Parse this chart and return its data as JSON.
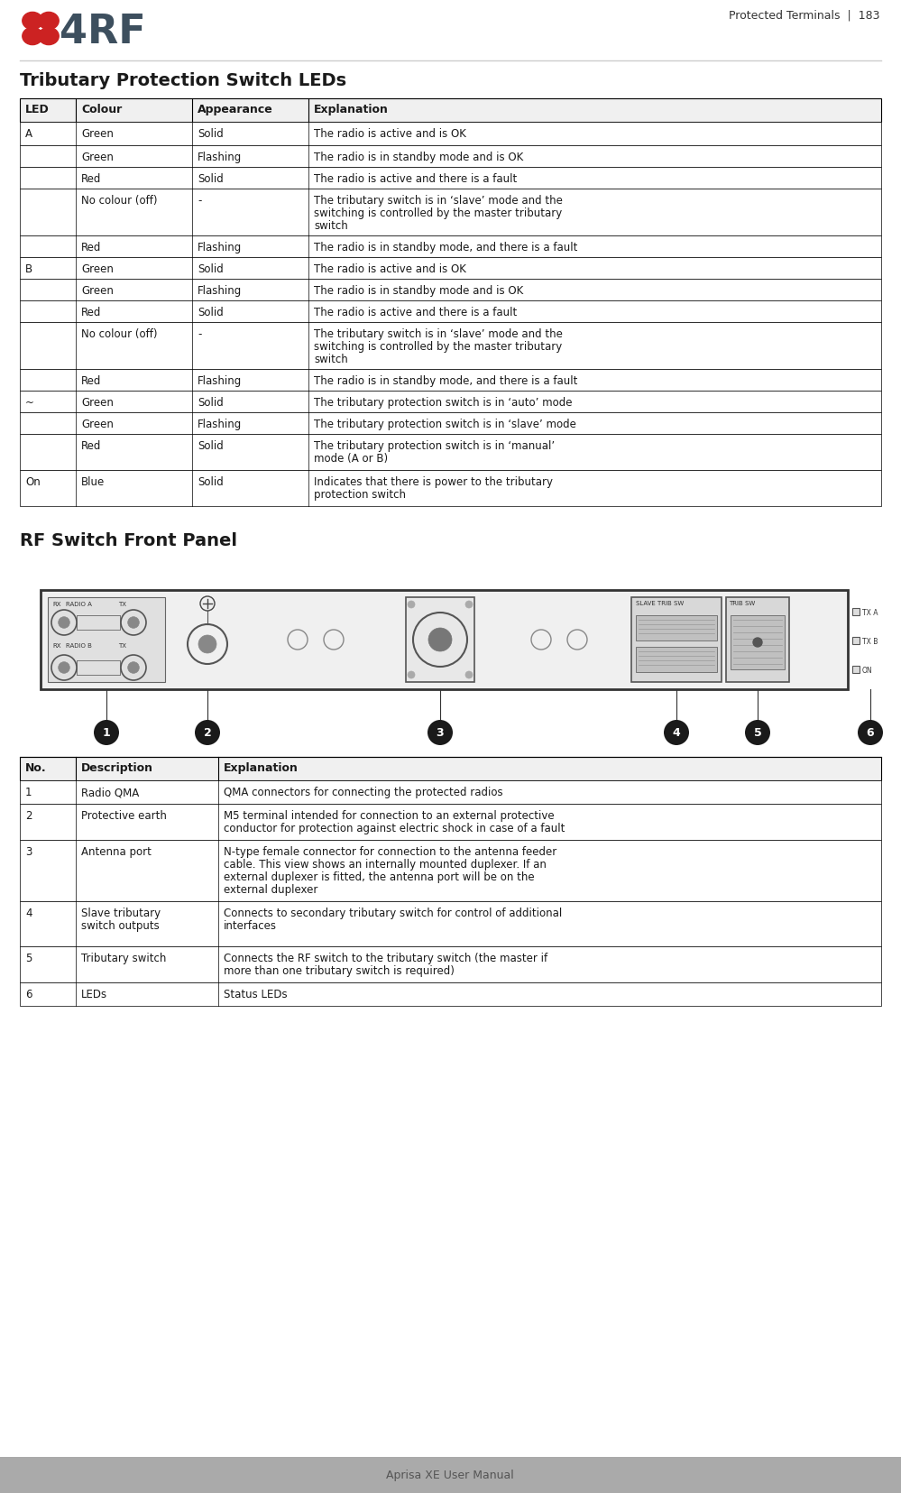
{
  "page_width": 9.99,
  "page_height": 16.56,
  "bg_color": "#ffffff",
  "footer_bg": "#aaaaaa",
  "header_text": "Protected Terminals  |  183",
  "footer_text": "Aprisa XE User Manual",
  "section1_title": "Tributary Protection Switch LEDs",
  "section2_title": "RF Switch Front Panel",
  "led_table_headers": [
    "LED",
    "Colour",
    "Appearance",
    "Explanation"
  ],
  "led_table_rows": [
    [
      "A",
      "Green",
      "Solid",
      "The radio is active and is OK"
    ],
    [
      "",
      "Green",
      "Flashing",
      "The radio is in standby mode and is OK"
    ],
    [
      "",
      "Red",
      "Solid",
      "The radio is active and there is a fault"
    ],
    [
      "",
      "No colour (off)",
      "-",
      "The tributary switch is in ‘slave’ mode and the\nswitching is controlled by the master tributary\nswitch"
    ],
    [
      "",
      "Red",
      "Flashing",
      "The radio is in standby mode, and there is a fault"
    ],
    [
      "B",
      "Green",
      "Solid",
      "The radio is active and is OK"
    ],
    [
      "",
      "Green",
      "Flashing",
      "The radio is in standby mode and is OK"
    ],
    [
      "",
      "Red",
      "Solid",
      "The radio is active and there is a fault"
    ],
    [
      "",
      "No colour (off)",
      "-",
      "The tributary switch is in ‘slave’ mode and the\nswitching is controlled by the master tributary\nswitch"
    ],
    [
      "",
      "Red",
      "Flashing",
      "The radio is in standby mode, and there is a fault"
    ],
    [
      "~",
      "Green",
      "Solid",
      "The tributary protection switch is in ‘auto’ mode"
    ],
    [
      "",
      "Green",
      "Flashing",
      "The tributary protection switch is in ‘slave’ mode"
    ],
    [
      "",
      "Red",
      "Solid",
      "The tributary protection switch is in ‘manual’\nmode (A or B)"
    ],
    [
      "On",
      "Blue",
      "Solid",
      "Indicates that there is power to the tributary\nprotection switch"
    ]
  ],
  "rf_table_headers": [
    "No.",
    "Description",
    "Explanation"
  ],
  "rf_table_rows": [
    [
      "1",
      "Radio QMA",
      "QMA connectors for connecting the protected radios"
    ],
    [
      "2",
      "Protective earth",
      "M5 terminal intended for connection to an external protective\nconductor for protection against electric shock in case of a fault"
    ],
    [
      "3",
      "Antenna port",
      "N-type female connector for connection to the antenna feeder\ncable. This view shows an internally mounted duplexer. If an\nexternal duplexer is fitted, the antenna port will be on the\nexternal duplexer"
    ],
    [
      "4",
      "Slave tributary\nswitch outputs",
      "Connects to secondary tributary switch for control of additional\ninterfaces"
    ],
    [
      "5",
      "Tributary switch",
      "Connects the RF switch to the tributary switch (the master if\nmore than one tributary switch is required)"
    ],
    [
      "6",
      "LEDs",
      "Status LEDs"
    ]
  ],
  "logo_dot_color": "#cc2222",
  "logo_text_color": "#3d4f5e",
  "header_line_color": "#cccccc",
  "table_header_bg": "#f0f0f0",
  "table_border_color": "#000000",
  "text_color": "#1a1a1a",
  "title_color": "#1a1a1a",
  "footer_text_color": "#555555",
  "num_circle_color": "#1a1a1a",
  "panel_bg": "#e8e8e8",
  "panel_border": "#555555"
}
